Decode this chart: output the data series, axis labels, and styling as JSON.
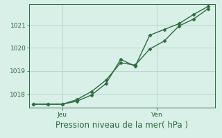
{
  "title": "",
  "xlabel": "Pression niveau de la mer( hPa )",
  "background_color": "#d8f0e8",
  "plot_bg_color": "#d8f0e8",
  "grid_color": "#b8d8cc",
  "line_color": "#2d6a3f",
  "tick_color": "#2d6a3f",
  "label_color": "#2d6a3f",
  "ylim": [
    1017.4,
    1021.9
  ],
  "yticks": [
    1018,
    1019,
    1020,
    1021
  ],
  "series1_x": [
    0,
    1,
    2,
    3,
    4,
    5,
    6,
    7,
    8,
    9,
    10,
    11,
    12
  ],
  "series1_y": [
    1017.55,
    1017.55,
    1017.55,
    1017.75,
    1018.1,
    1018.6,
    1019.35,
    1019.25,
    1019.95,
    1020.3,
    1020.95,
    1021.25,
    1021.7
  ],
  "series2_x": [
    0,
    1,
    2,
    3,
    4,
    5,
    6,
    7,
    8,
    9,
    10,
    11,
    12
  ],
  "series2_y": [
    1017.55,
    1017.55,
    1017.55,
    1017.68,
    1017.95,
    1018.45,
    1019.5,
    1019.2,
    1020.55,
    1020.8,
    1021.05,
    1021.45,
    1021.8
  ],
  "x_jeu": 2,
  "x_ven": 8.5,
  "xlim": [
    -0.3,
    12.5
  ],
  "tick_label_fontsize": 6.5,
  "xlabel_fontsize": 8.5
}
